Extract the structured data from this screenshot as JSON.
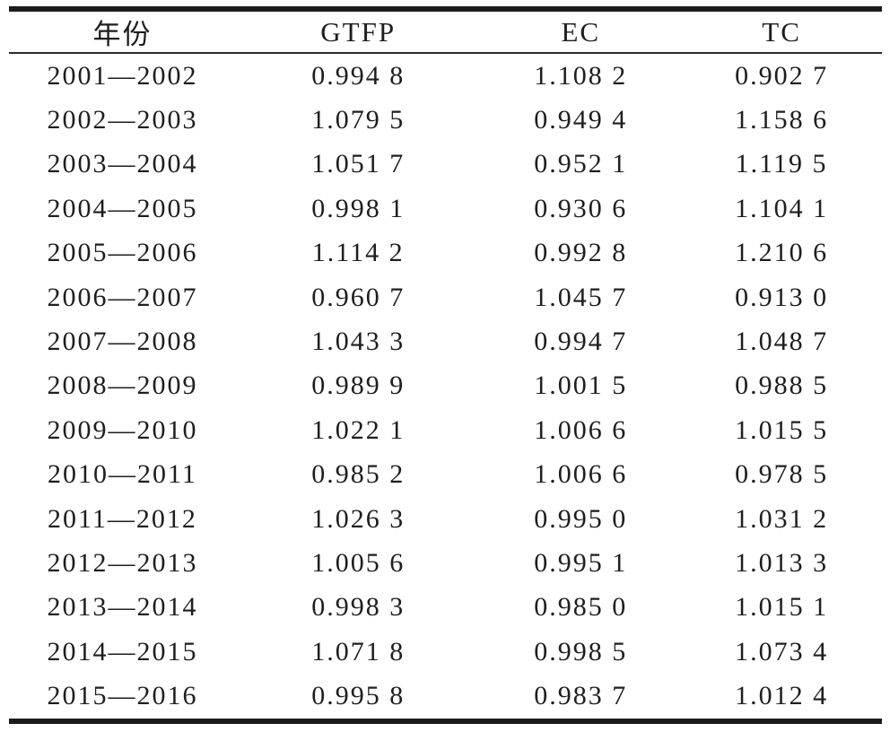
{
  "table": {
    "columns": [
      "年份",
      "GTFP",
      "EC",
      "TC"
    ],
    "rows": [
      [
        "2001—2002",
        "0.994 8",
        "1.108 2",
        "0.902 7"
      ],
      [
        "2002—2003",
        "1.079 5",
        "0.949 4",
        "1.158 6"
      ],
      [
        "2003—2004",
        "1.051 7",
        "0.952 1",
        "1.119 5"
      ],
      [
        "2004—2005",
        "0.998 1",
        "0.930 6",
        "1.104 1"
      ],
      [
        "2005—2006",
        "1.114 2",
        "0.992 8",
        "1.210 6"
      ],
      [
        "2006—2007",
        "0.960 7",
        "1.045 7",
        "0.913 0"
      ],
      [
        "2007—2008",
        "1.043 3",
        "0.994 7",
        "1.048 7"
      ],
      [
        "2008—2009",
        "0.989 9",
        "1.001 5",
        "0.988 5"
      ],
      [
        "2009—2010",
        "1.022 1",
        "1.006 6",
        "1.015 5"
      ],
      [
        "2010—2011",
        "0.985 2",
        "1.006 6",
        "0.978 5"
      ],
      [
        "2011—2012",
        "1.026 3",
        "0.995 0",
        "1.031 2"
      ],
      [
        "2012—2013",
        "1.005 6",
        "0.995 1",
        "1.013 3"
      ],
      [
        "2013—2014",
        "0.998 3",
        "0.985 0",
        "1.015 1"
      ],
      [
        "2014—2015",
        "1.071 8",
        "0.998 5",
        "1.073 4"
      ],
      [
        "2015—2016",
        "0.995 8",
        "0.983 7",
        "1.012 4"
      ]
    ]
  },
  "chart_data": {
    "type": "table",
    "columns": [
      "年份",
      "GTFP",
      "EC",
      "TC"
    ],
    "categories": [
      "2001—2002",
      "2002—2003",
      "2003—2004",
      "2004—2005",
      "2005—2006",
      "2006—2007",
      "2007—2008",
      "2008—2009",
      "2009—2010",
      "2010—2011",
      "2011—2012",
      "2012—2013",
      "2013—2014",
      "2014—2015",
      "2015—2016"
    ],
    "series": [
      {
        "name": "GTFP",
        "values": [
          0.9948,
          1.0795,
          1.0517,
          0.9981,
          1.1142,
          0.9607,
          1.0433,
          0.9899,
          1.0221,
          0.9852,
          1.0263,
          1.0056,
          0.9983,
          1.0718,
          0.9958
        ]
      },
      {
        "name": "EC",
        "values": [
          1.1082,
          0.9494,
          0.9521,
          0.9306,
          0.9928,
          1.0457,
          0.9947,
          1.0015,
          1.0066,
          1.0066,
          0.995,
          0.9951,
          0.985,
          0.9985,
          0.9837
        ]
      },
      {
        "name": "TC",
        "values": [
          0.9027,
          1.1586,
          1.1195,
          1.1041,
          1.2106,
          0.913,
          1.0487,
          0.9885,
          1.0155,
          0.9785,
          1.0312,
          1.0133,
          1.0151,
          1.0734,
          1.0124
        ]
      }
    ]
  }
}
